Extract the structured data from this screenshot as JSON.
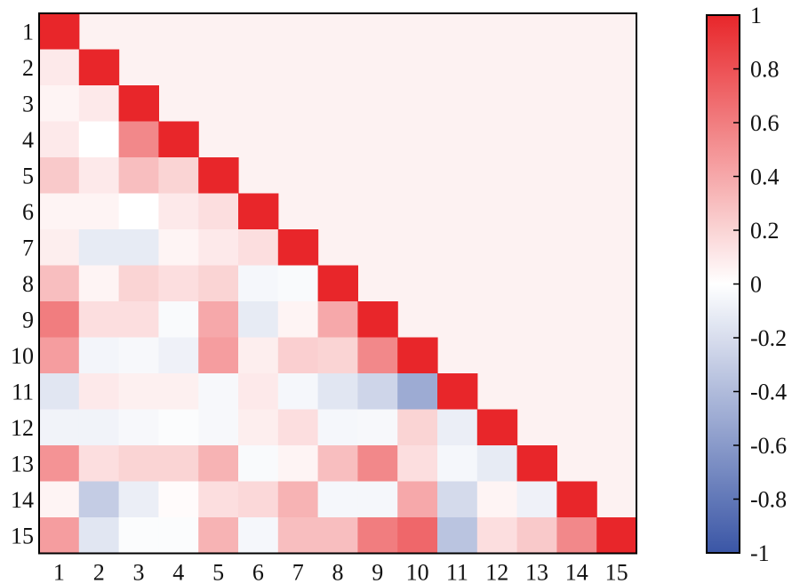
{
  "chart_data": {
    "type": "heatmap",
    "title": "",
    "xlabel": "",
    "ylabel": "",
    "x_categories": [
      "1",
      "2",
      "3",
      "4",
      "5",
      "6",
      "7",
      "8",
      "9",
      "10",
      "11",
      "12",
      "13",
      "14",
      "15"
    ],
    "y_categories": [
      "1",
      "2",
      "3",
      "4",
      "5",
      "6",
      "7",
      "8",
      "9",
      "10",
      "11",
      "12",
      "13",
      "14",
      "15"
    ],
    "upper_triangle_fill": "#fdf2f2",
    "matrix": [
      [
        1.0
      ],
      [
        0.1,
        1.0
      ],
      [
        0.05,
        0.1,
        1.0
      ],
      [
        0.1,
        0.0,
        0.55,
        1.0
      ],
      [
        0.25,
        0.1,
        0.3,
        0.2,
        1.0
      ],
      [
        0.05,
        0.05,
        0.0,
        0.1,
        0.15,
        1.0
      ],
      [
        0.08,
        -0.12,
        -0.12,
        0.05,
        0.1,
        0.15,
        1.0
      ],
      [
        0.3,
        0.05,
        0.2,
        0.15,
        0.2,
        -0.05,
        -0.03,
        1.0
      ],
      [
        0.6,
        0.15,
        0.15,
        -0.03,
        0.4,
        -0.12,
        0.05,
        0.4,
        1.0
      ],
      [
        0.45,
        -0.06,
        -0.04,
        -0.08,
        0.45,
        0.08,
        0.22,
        0.2,
        0.55,
        1.0
      ],
      [
        -0.15,
        0.1,
        0.07,
        0.07,
        -0.04,
        0.1,
        -0.05,
        -0.15,
        -0.25,
        -0.5,
        1.0
      ],
      [
        -0.07,
        -0.07,
        -0.04,
        -0.02,
        -0.04,
        0.08,
        0.15,
        -0.05,
        -0.04,
        0.2,
        -0.1,
        1.0
      ],
      [
        0.5,
        0.15,
        0.2,
        0.2,
        0.35,
        -0.03,
        0.05,
        0.3,
        0.55,
        0.15,
        -0.05,
        -0.12,
        1.0
      ],
      [
        0.05,
        -0.3,
        -0.1,
        0.02,
        0.15,
        0.18,
        0.35,
        -0.05,
        -0.05,
        0.4,
        -0.22,
        0.05,
        -0.08,
        1.0
      ],
      [
        0.45,
        -0.15,
        -0.02,
        -0.02,
        0.35,
        -0.05,
        0.3,
        0.3,
        0.6,
        0.7,
        -0.35,
        0.15,
        0.25,
        0.55,
        1.0
      ]
    ],
    "colorbar": {
      "min": -1,
      "max": 1,
      "ticks": [
        "1",
        "0.8",
        "0.6",
        "0.4",
        "0.2",
        "0",
        "-0.2",
        "-0.4",
        "-0.6",
        "-0.8",
        "-1"
      ],
      "colors": {
        "low": "#3a56a6",
        "mid": "#ffffff",
        "high": "#e8262a"
      }
    }
  }
}
